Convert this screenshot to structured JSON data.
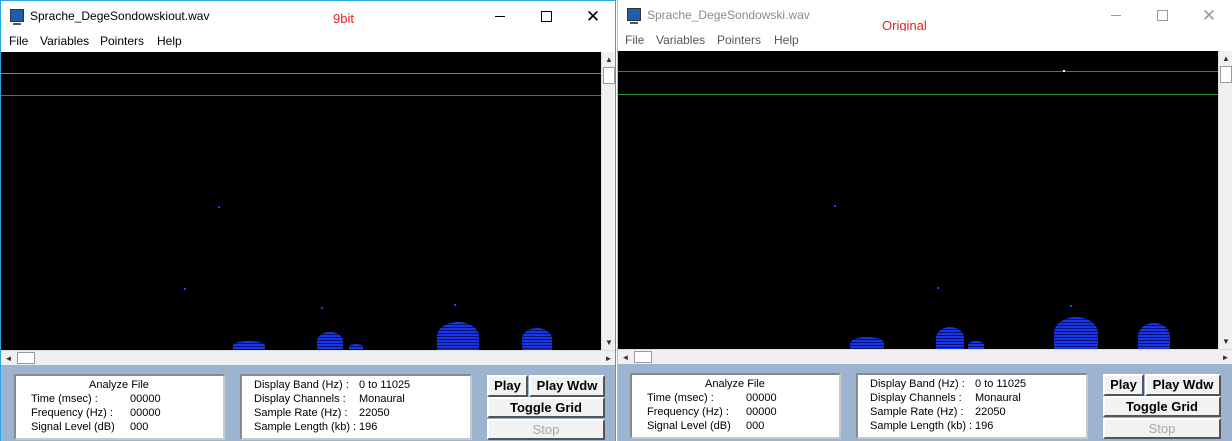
{
  "windows": [
    {
      "title": "Sprache_DegeSondowskiout.wav",
      "annotation": "9bit",
      "menu": [
        "File",
        "Variables",
        "Pointers",
        "Help"
      ],
      "analyze": {
        "heading": "Analyze File",
        "rows": [
          [
            "Time (msec) :",
            "00000"
          ],
          [
            "Frequency (Hz) :",
            "00000"
          ],
          [
            "Signal Level (dB)",
            "000"
          ]
        ]
      },
      "display": {
        "rows": [
          [
            "Display Band (Hz) :",
            "0 to 11025"
          ],
          [
            "Display Channels :",
            "Monaural"
          ],
          [
            "Sample Rate (Hz) :",
            "22050"
          ],
          [
            "Sample Length (kb) :",
            "196"
          ]
        ]
      },
      "buttons": {
        "play": "Play",
        "play_wdw": "Play Wdw",
        "toggle_grid": "Toggle Grid",
        "stop": "Stop"
      },
      "window_controls": {
        "minimize": "—",
        "maximize": "☐",
        "close": "✕"
      }
    },
    {
      "title": "Sprache_DegeSondowski.wav",
      "annotation": "Original",
      "menu": [
        "File",
        "Variables",
        "Pointers",
        "Help"
      ],
      "analyze": {
        "heading": "Analyze File",
        "rows": [
          [
            "Time (msec) :",
            "00000"
          ],
          [
            "Frequency (Hz) :",
            "00000"
          ],
          [
            "Signal Level (dB)",
            "000"
          ]
        ]
      },
      "display": {
        "rows": [
          [
            "Display Band (Hz) :",
            "0 to 11025"
          ],
          [
            "Display Channels :",
            "Monaural"
          ],
          [
            "Sample Rate (Hz) :",
            "22050"
          ],
          [
            "Sample Length (kb) :",
            "196"
          ]
        ]
      },
      "buttons": {
        "play": "Play",
        "play_wdw": "Play Wdw",
        "toggle_grid": "Toggle Grid",
        "stop": "Stop"
      },
      "window_controls": {
        "minimize": "—",
        "maximize": "☐",
        "close": "✕"
      }
    }
  ],
  "colors": {
    "spectrogram_bg": "#000000",
    "pointer_line_1": "#9a8a2a",
    "pointer_line_2": "#2a8a3a",
    "spectral_energy": "#1a3cff",
    "panel_bg": "#9cb4cf",
    "annotation": "#e82020"
  },
  "scrollbar_icons": {
    "up": "▲",
    "down": "▼",
    "left": "◄",
    "right": "►"
  }
}
